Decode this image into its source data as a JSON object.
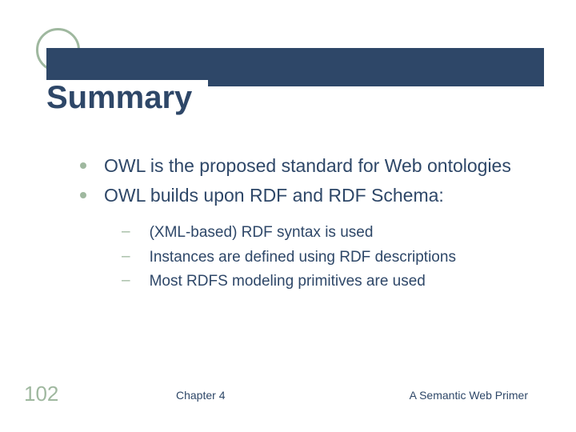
{
  "slide": {
    "title": "Summary",
    "accent_color": "#9fb89f",
    "text_color": "#2e4768",
    "bar_color": "#2e4768",
    "background": "#ffffff"
  },
  "bullets": [
    "OWL is the proposed standard for Web ontologies",
    "OWL builds upon RDF and RDF Schema:"
  ],
  "sub_bullets": [
    "(XML-based) RDF syntax is used",
    "Instances are defined using RDF descriptions",
    "Most RDFS modeling primitives are used"
  ],
  "footer": {
    "page_number": "102",
    "center": "Chapter 4",
    "right": "A Semantic Web Primer"
  }
}
